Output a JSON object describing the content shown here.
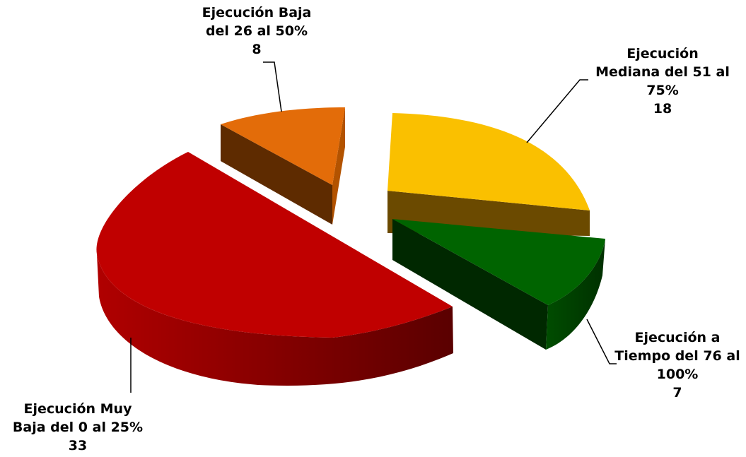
{
  "chart_data": {
    "type": "pie",
    "title": "",
    "labels": [
      "Ejecución Muy Baja del 0 al 25%",
      "Ejecución Baja del 26 al 50%",
      "Ejecución Mediana del 51 al 75%",
      "Ejecución a Tiempo del 76 al 100%"
    ],
    "values": [
      33,
      8,
      18,
      7
    ],
    "label_lines": [
      [
        "Ejecución Muy",
        "Baja del 0 al 25%"
      ],
      [
        "Ejecución Baja",
        "del 26 al 50%"
      ],
      [
        "Ejecución",
        "Mediana del 51 al",
        "75%"
      ],
      [
        "Ejecución a",
        "Tiempo del 76 al",
        "100%"
      ]
    ],
    "value_labels": [
      "33",
      "8",
      "18",
      "7"
    ],
    "colors": [
      "#c00000",
      "#e36c09",
      "#fac000",
      "#006400"
    ],
    "exploded": true,
    "style": "3d",
    "legend": "none"
  }
}
